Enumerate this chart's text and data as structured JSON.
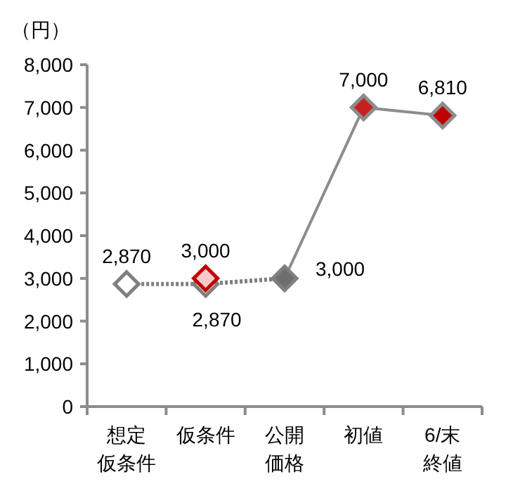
{
  "chart_data": {
    "type": "line",
    "ylabel": "（円）",
    "categories": [
      "想定仮条件",
      "仮条件",
      "公開価格",
      "初値",
      "6/末終値"
    ],
    "ylim": [
      0,
      8000
    ],
    "yticks": [
      {
        "value": 0,
        "label": "0"
      },
      {
        "value": 1000,
        "label": "1,000"
      },
      {
        "value": 2000,
        "label": "2,000"
      },
      {
        "value": 3000,
        "label": "3,000"
      },
      {
        "value": 4000,
        "label": "4,000"
      },
      {
        "value": 5000,
        "label": "5,000"
      },
      {
        "value": 6000,
        "label": "6,000"
      },
      {
        "value": 7000,
        "label": "7,000"
      },
      {
        "value": 8000,
        "label": "8,000"
      }
    ],
    "marker": "diamond",
    "series": [
      {
        "line_style": "dotted",
        "color": "#7f7f7f",
        "values": [
          2870,
          2870,
          3000,
          null,
          null
        ],
        "colors": [
          "#ffffff",
          "#ffffff",
          "#6e6e6e",
          null,
          null
        ],
        "value_labels": [
          "2,870",
          "2,870",
          "3,000",
          null,
          null
        ]
      },
      {
        "line_style": "solid",
        "color": "#8c8c8c",
        "values": [
          null,
          null,
          3000,
          7000,
          6810
        ],
        "colors": [
          null,
          null,
          null,
          "#c8201e",
          "#c00000"
        ],
        "value_labels": [
          null,
          null,
          null,
          "7,000",
          "6,810"
        ]
      },
      {
        "type": "scatter",
        "color": "#c00000",
        "values": [
          null,
          3000,
          null,
          null,
          null
        ],
        "colors": [
          null,
          "#f7caca",
          null,
          null,
          null
        ],
        "value_labels": [
          null,
          "3,000",
          null,
          null,
          null
        ]
      }
    ]
  }
}
